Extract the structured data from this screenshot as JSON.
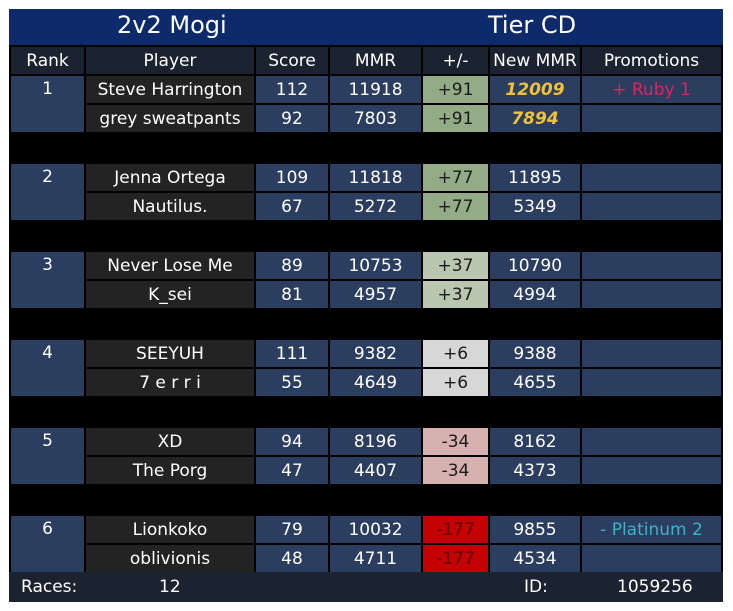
{
  "header": {
    "left_title": "2v2 Mogi",
    "right_title": "Tier CD"
  },
  "columns": [
    "Rank",
    "Player",
    "Score",
    "MMR",
    "+/-",
    "New MMR",
    "Promotions"
  ],
  "teams": [
    {
      "rank": "1",
      "players": [
        {
          "name": "Steve Harrington",
          "score": "112",
          "mmr": "11918",
          "delta": "+91",
          "new_mmr": "12009",
          "promotion": "+ Ruby 1"
        },
        {
          "name": "grey sweatpants",
          "score": "92",
          "mmr": "7803",
          "delta": "+91",
          "new_mmr": "7894",
          "promotion": ""
        }
      ]
    },
    {
      "rank": "2",
      "players": [
        {
          "name": "Jenna Ortega",
          "score": "109",
          "mmr": "11818",
          "delta": "+77",
          "new_mmr": "11895",
          "promotion": ""
        },
        {
          "name": "Nautilus.",
          "score": "67",
          "mmr": "5272",
          "delta": "+77",
          "new_mmr": "5349",
          "promotion": ""
        }
      ]
    },
    {
      "rank": "3",
      "players": [
        {
          "name": "Never Lose Me",
          "score": "89",
          "mmr": "10753",
          "delta": "+37",
          "new_mmr": "10790",
          "promotion": ""
        },
        {
          "name": "K_sei",
          "score": "81",
          "mmr": "4957",
          "delta": "+37",
          "new_mmr": "4994",
          "promotion": ""
        }
      ]
    },
    {
      "rank": "4",
      "players": [
        {
          "name": "SEEYUH",
          "score": "111",
          "mmr": "9382",
          "delta": "+6",
          "new_mmr": "9388",
          "promotion": ""
        },
        {
          "name": "7 e r r i",
          "score": "55",
          "mmr": "4649",
          "delta": "+6",
          "new_mmr": "4655",
          "promotion": ""
        }
      ]
    },
    {
      "rank": "5",
      "players": [
        {
          "name": "XD",
          "score": "94",
          "mmr": "8196",
          "delta": "-34",
          "new_mmr": "8162",
          "promotion": ""
        },
        {
          "name": "The Porg",
          "score": "47",
          "mmr": "4407",
          "delta": "-34",
          "new_mmr": "4373",
          "promotion": ""
        }
      ]
    },
    {
      "rank": "6",
      "players": [
        {
          "name": "Lionkoko",
          "score": "79",
          "mmr": "10032",
          "delta": "-177",
          "new_mmr": "9855",
          "promotion": "- Platinum 2"
        },
        {
          "name": "oblivionis",
          "score": "48",
          "mmr": "4711",
          "delta": "-177",
          "new_mmr": "4534",
          "promotion": ""
        }
      ]
    }
  ],
  "footer": {
    "races_label": "Races:",
    "races_value": "12",
    "id_label": "ID:",
    "id_value": "1059256"
  },
  "colors": {
    "header_bg": "#0d2a6b",
    "delta_bg": [
      "#93ab86",
      "#93ab86",
      "#b9c7b0",
      "#d7d7d7",
      "#d6b1b0",
      "#c40000"
    ],
    "new_mmr_highlight": "#f0c23c",
    "promotion_up": "#e0235f",
    "promotion_down": "#3fb1c8"
  }
}
